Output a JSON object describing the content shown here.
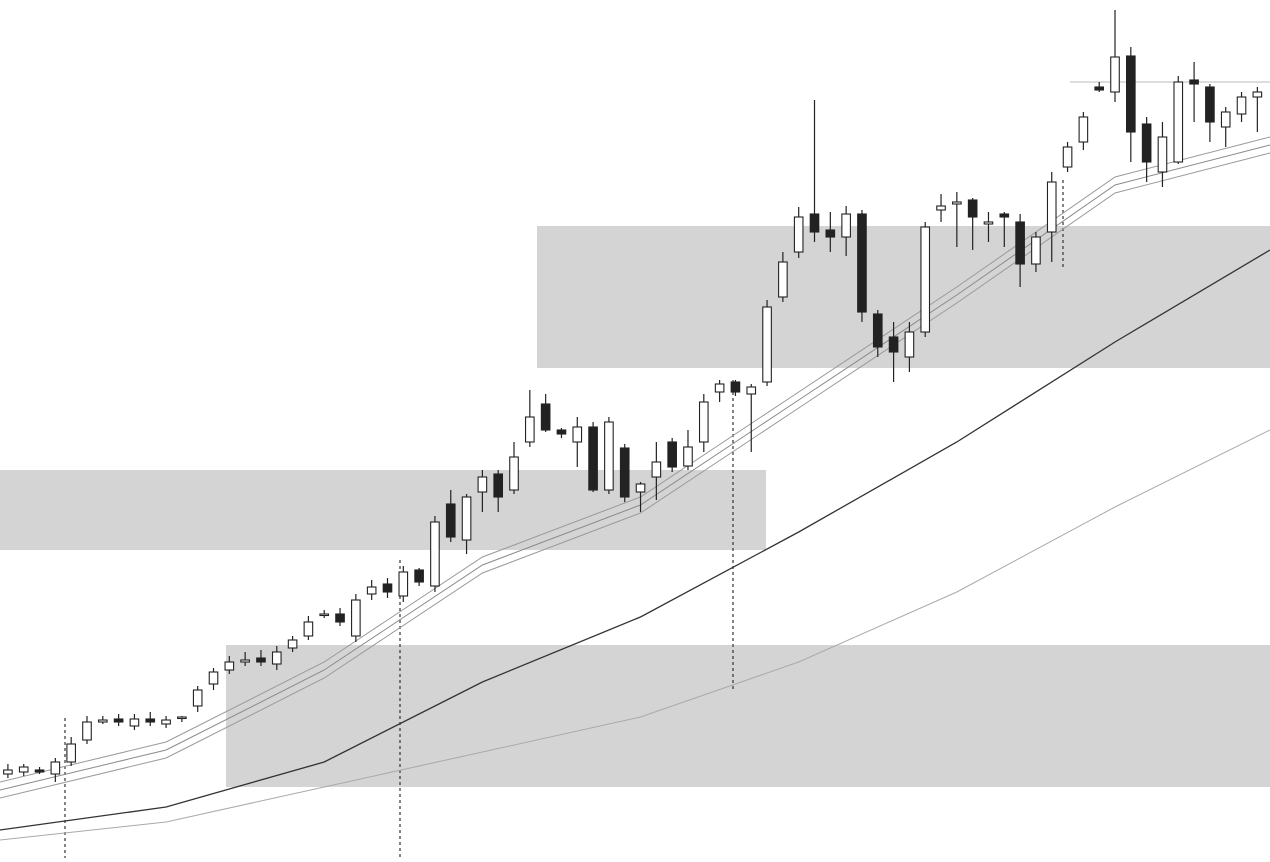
{
  "chart_data": {
    "type": "candlestick",
    "xlim": [
      -0.5,
      79.8
    ],
    "ylim": [
      0,
      862
    ],
    "up_color": "#ffffff",
    "down_color": "#222222",
    "edge_color": "#222222",
    "ohlc": [
      [
        88,
        98,
        84,
        92
      ],
      [
        90,
        98,
        86,
        95
      ],
      [
        92,
        95,
        88,
        90
      ],
      [
        88,
        104,
        80,
        100
      ],
      [
        100,
        125,
        96,
        118
      ],
      [
        122,
        146,
        118,
        140
      ],
      [
        140,
        146,
        138,
        142
      ],
      [
        143,
        148,
        136,
        140
      ],
      [
        136,
        148,
        132,
        143
      ],
      [
        143,
        150,
        136,
        140
      ],
      [
        138,
        146,
        134,
        142
      ],
      [
        144,
        146,
        140,
        145
      ],
      [
        156,
        176,
        150,
        172
      ],
      [
        178,
        194,
        172,
        190
      ],
      [
        192,
        206,
        188,
        200
      ],
      [
        200,
        210,
        196,
        202
      ],
      [
        204,
        212,
        196,
        200
      ],
      [
        198,
        216,
        192,
        210
      ],
      [
        214,
        226,
        210,
        222
      ],
      [
        226,
        246,
        222,
        240
      ],
      [
        248,
        252,
        244,
        248
      ],
      [
        248,
        254,
        236,
        240
      ],
      [
        226,
        268,
        220,
        262
      ],
      [
        268,
        282,
        262,
        275
      ],
      [
        278,
        284,
        264,
        270
      ],
      [
        266,
        296,
        260,
        290
      ],
      [
        292,
        294,
        276,
        280
      ],
      [
        276,
        346,
        270,
        340
      ],
      [
        358,
        372,
        320,
        325
      ],
      [
        322,
        368,
        308,
        365
      ],
      [
        370,
        392,
        350,
        385
      ],
      [
        388,
        392,
        350,
        365
      ],
      [
        372,
        420,
        368,
        405
      ],
      [
        420,
        472,
        415,
        445
      ],
      [
        458,
        468,
        430,
        432
      ],
      [
        432,
        434,
        424,
        428
      ],
      [
        420,
        445,
        395,
        435
      ],
      [
        435,
        440,
        370,
        372
      ],
      [
        372,
        445,
        368,
        440
      ],
      [
        414,
        418,
        360,
        365
      ],
      [
        370,
        380,
        350,
        378
      ],
      [
        385,
        420,
        362,
        400
      ],
      [
        420,
        424,
        390,
        395
      ],
      [
        396,
        432,
        392,
        415
      ],
      [
        420,
        468,
        410,
        460
      ],
      [
        470,
        482,
        460,
        478
      ],
      [
        480,
        482,
        466,
        470
      ],
      [
        468,
        478,
        410,
        475
      ],
      [
        480,
        562,
        476,
        555
      ],
      [
        565,
        610,
        560,
        600
      ],
      [
        610,
        655,
        604,
        645
      ],
      [
        648,
        762,
        620,
        630
      ],
      [
        632,
        650,
        610,
        625
      ],
      [
        625,
        656,
        606,
        648
      ],
      [
        648,
        652,
        540,
        550
      ],
      [
        548,
        552,
        505,
        515
      ],
      [
        525,
        540,
        480,
        510
      ],
      [
        505,
        540,
        490,
        530
      ],
      [
        530,
        640,
        525,
        635
      ],
      [
        652,
        668,
        640,
        656
      ],
      [
        658,
        670,
        615,
        660
      ],
      [
        662,
        664,
        612,
        645
      ],
      [
        638,
        650,
        620,
        640
      ],
      [
        648,
        650,
        615,
        645
      ],
      [
        640,
        648,
        575,
        598
      ],
      [
        598,
        630,
        590,
        625
      ],
      [
        630,
        690,
        600,
        680
      ],
      [
        695,
        720,
        690,
        715
      ],
      [
        720,
        750,
        712,
        745
      ],
      [
        775,
        780,
        770,
        772
      ],
      [
        770,
        852,
        760,
        805
      ],
      [
        806,
        815,
        700,
        730
      ],
      [
        738,
        745,
        680,
        700
      ],
      [
        690,
        740,
        675,
        725
      ],
      [
        700,
        786,
        698,
        780
      ],
      [
        782,
        800,
        740,
        778
      ],
      [
        775,
        778,
        720,
        740
      ],
      [
        735,
        755,
        715,
        750
      ],
      [
        748,
        770,
        740,
        765
      ],
      [
        765,
        775,
        730,
        770
      ]
    ],
    "x": [
      -0.5,
      10,
      20,
      30,
      40,
      50,
      60,
      70,
      79.8
    ],
    "series": [
      {
        "color": "#9a9a9a",
        "values": [
          80,
          120,
          200,
          305,
          365,
          470,
          575,
          685,
          725
        ]
      },
      {
        "color": "#8a8a8a",
        "values": [
          72,
          112,
          192,
          297,
          357,
          462,
          567,
          677,
          717
        ]
      },
      {
        "color": "#9a9a9a",
        "values": [
          64,
          104,
          184,
          289,
          349,
          454,
          559,
          669,
          709
        ]
      },
      {
        "color": "#333333",
        "values": [
          32,
          55,
          100,
          180,
          245,
          330,
          420,
          520,
          612
        ]
      },
      {
        "color": "#aaaaaa",
        "values": [
          22,
          40,
          75,
          110,
          145,
          200,
          270,
          355,
          432
        ]
      }
    ]
  }
}
